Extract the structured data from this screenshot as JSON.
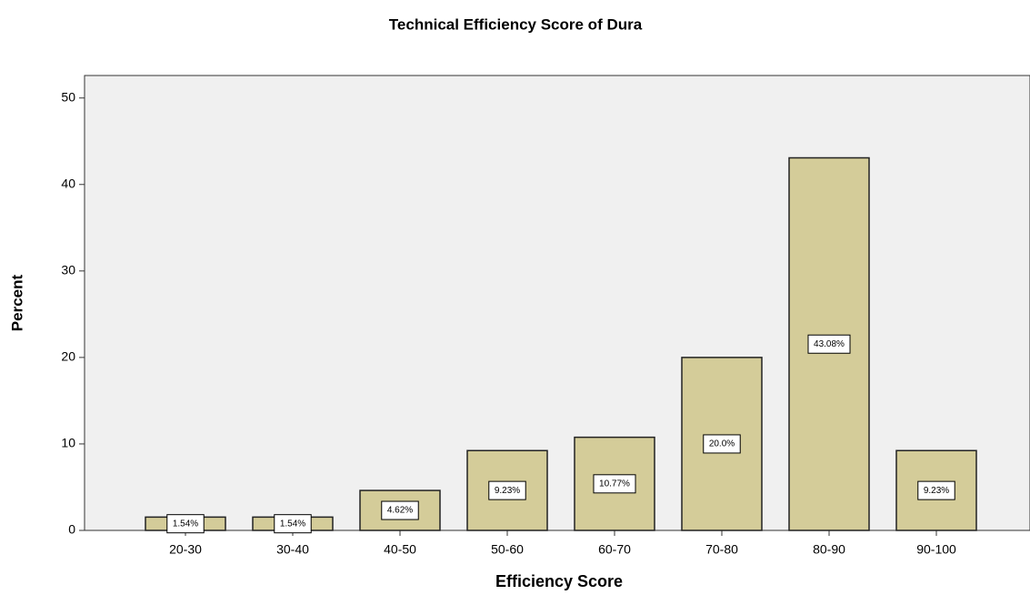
{
  "chart_data": {
    "type": "bar",
    "title": "Technical Efficiency Score of Dura",
    "x_label": "Efficiency Score",
    "y_label": "Percent",
    "categories": [
      "20-30",
      "30-40",
      "40-50",
      "50-60",
      "60-70",
      "70-80",
      "80-90",
      "90-100"
    ],
    "values": [
      1.54,
      1.54,
      4.62,
      9.23,
      10.77,
      20.0,
      43.08,
      9.23
    ],
    "value_labels": [
      "1.54%",
      "1.54%",
      "4.62%",
      "9.23%",
      "10.77%",
      "20.0%",
      "43.08%",
      "9.23%"
    ],
    "color": "#d4cc99",
    "ylim": [
      0,
      52.6
    ],
    "yticks": [
      0,
      10,
      20,
      30,
      40,
      50
    ]
  }
}
